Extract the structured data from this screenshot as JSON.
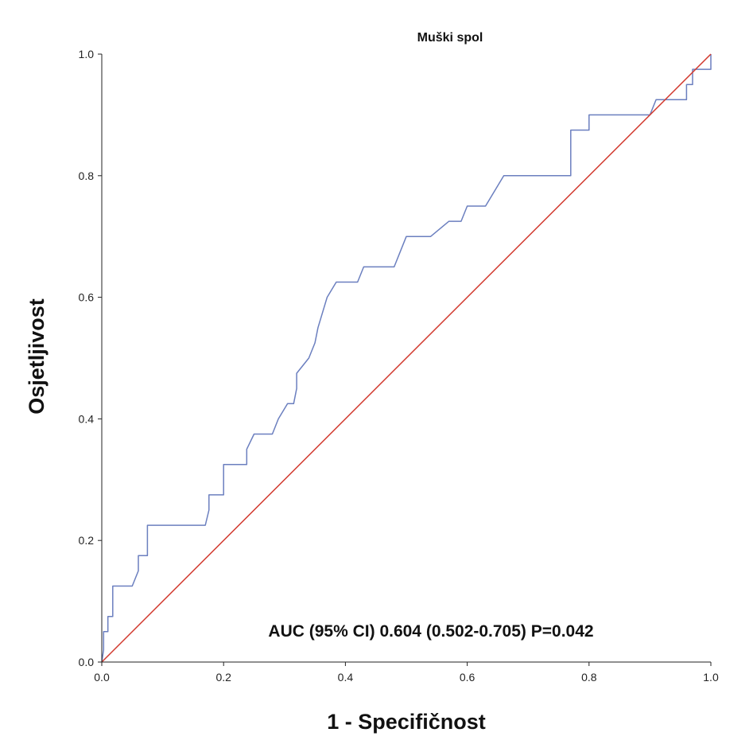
{
  "chart_data": {
    "type": "line",
    "title": "Muški spol",
    "xlabel": "1 - Specifičnost",
    "ylabel": "Osjetljivost",
    "xlim": [
      0,
      1
    ],
    "ylim": [
      0,
      1
    ],
    "xticks": [
      "0.0",
      "0.2",
      "0.4",
      "0.6",
      "0.8",
      "1.0"
    ],
    "yticks": [
      "0.0",
      "0.2",
      "0.4",
      "0.6",
      "0.8",
      "1.0"
    ],
    "grid": false,
    "legend": "none",
    "annotation": "AUC (95% CI)  0.604 (0.502-0.705) P=0.042",
    "series": [
      {
        "color": "#6b7fbf",
        "x": [
          0,
          0.003,
          0.003,
          0.01,
          0.01,
          0.018,
          0.018,
          0.05,
          0.06,
          0.06,
          0.075,
          0.075,
          0.17,
          0.176,
          0.176,
          0.2,
          0.2,
          0.238,
          0.238,
          0.25,
          0.25,
          0.28,
          0.29,
          0.305,
          0.315,
          0.32,
          0.32,
          0.34,
          0.35,
          0.355,
          0.37,
          0.385,
          0.4,
          0.42,
          0.43,
          0.44,
          0.48,
          0.5,
          0.51,
          0.54,
          0.57,
          0.59,
          0.6,
          0.63,
          0.66,
          0.68,
          0.77,
          0.77,
          0.8,
          0.8,
          0.9,
          0.91,
          0.96,
          0.96,
          0.97,
          0.97,
          0.985,
          0.985,
          1,
          1
        ],
        "y": [
          0,
          0.02,
          0.05,
          0.05,
          0.075,
          0.075,
          0.125,
          0.125,
          0.15,
          0.175,
          0.175,
          0.225,
          0.225,
          0.25,
          0.275,
          0.275,
          0.325,
          0.325,
          0.35,
          0.375,
          0.375,
          0.375,
          0.4,
          0.425,
          0.425,
          0.45,
          0.475,
          0.5,
          0.525,
          0.55,
          0.6,
          0.625,
          0.625,
          0.625,
          0.65,
          0.65,
          0.65,
          0.7,
          0.7,
          0.7,
          0.725,
          0.725,
          0.75,
          0.75,
          0.8,
          0.8,
          0.8,
          0.875,
          0.875,
          0.9,
          0.9,
          0.925,
          0.925,
          0.95,
          0.95,
          0.975,
          0.975,
          0.975,
          0.975,
          1
        ]
      },
      {
        "color": "#d23a2f",
        "x": [
          0,
          1
        ],
        "y": [
          0,
          1
        ]
      }
    ]
  }
}
